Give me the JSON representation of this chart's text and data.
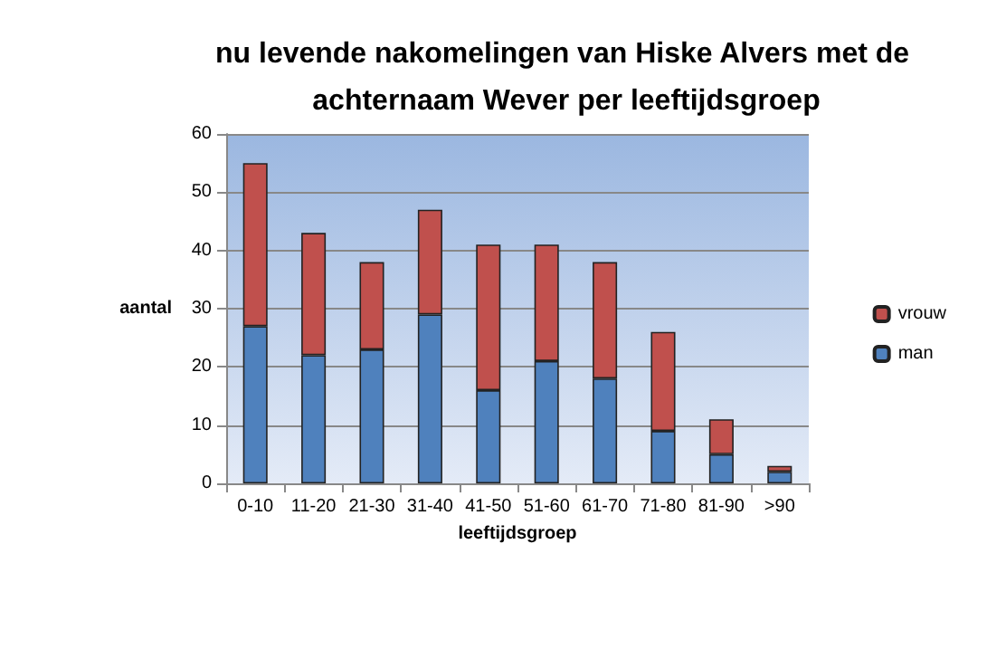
{
  "chart_data": {
    "type": "bar",
    "title": "nu levende nakomelingen van Hiske Alvers met de achternaam Wever per leeftijdsgroep",
    "xlabel": "leeftijdsgroep",
    "ylabel": "aantal",
    "categories": [
      "0-10",
      "11-20",
      "21-30",
      "31-40",
      "41-50",
      "51-60",
      "61-70",
      "71-80",
      "81-90",
      ">90"
    ],
    "stacked": true,
    "series": [
      {
        "name": "man",
        "color": "#4f81bd",
        "values": [
          27,
          22,
          23,
          29,
          16,
          21,
          18,
          9,
          5,
          2
        ]
      },
      {
        "name": "vrouw",
        "color": "#c0504d",
        "values": [
          28,
          21,
          15,
          18,
          25,
          20,
          20,
          17,
          6,
          1
        ]
      }
    ],
    "ylim": [
      0,
      60
    ],
    "yticks": [
      0,
      10,
      20,
      30,
      40,
      50,
      60
    ],
    "grid": "y",
    "legend": "right"
  }
}
